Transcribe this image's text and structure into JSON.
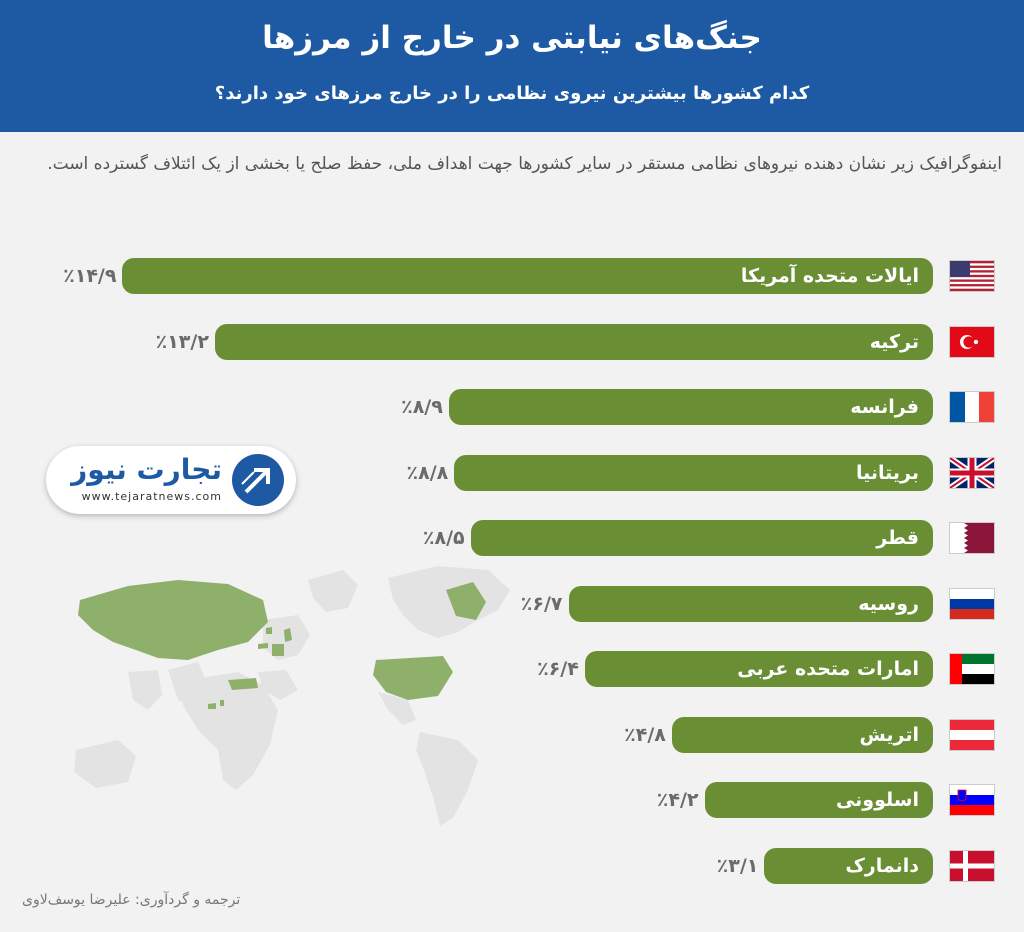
{
  "header": {
    "title": "جنگ‌های نیابتی در خارج از مرزها",
    "subtitle": "کدام کشورها بیشترین نیروی نظامی را در خارج مرزهای خود دارند؟"
  },
  "intro": "اینفوگرافیک زیر نشان دهنده نیروهای نظامی مستقر در سایر کشورها جهت اهداف ملی، حفظ صلح یا بخشی از یک ائتلاف گسترده است.",
  "logo": {
    "name": "تجارت نیوز",
    "url": "www.tejaratnews.com"
  },
  "credit": "ترجمه و گردآوری: علیرضا یوسف‌لاوی",
  "colors": {
    "header": "#1e5aa3",
    "bar": "#6a8e34",
    "map_highlight": "#8fb06a",
    "map_base": "#e3e3e3"
  },
  "chart_data": {
    "type": "bar",
    "orientation": "horizontal",
    "categories": [
      "ایالات متحده آمریکا",
      "ترکیه",
      "فرانسه",
      "بریتانیا",
      "قطر",
      "روسیه",
      "امارات متحده عربی",
      "اتریش",
      "اسلوونی",
      "دانمارک"
    ],
    "values": [
      14.9,
      13.2,
      8.9,
      8.8,
      8.5,
      6.7,
      6.4,
      4.8,
      4.2,
      3.1
    ],
    "value_labels": [
      "٪۱۴/۹",
      "٪۱۳/۲",
      "٪۸/۹",
      "٪۸/۸",
      "٪۸/۵",
      "٪۶/۷",
      "٪۶/۴",
      "٪۴/۸",
      "٪۴/۲",
      "٪۳/۱"
    ],
    "flags": [
      "us-flag",
      "turkey-flag",
      "france-flag",
      "uk-flag",
      "qatar-flag",
      "russia-flag",
      "uae-flag",
      "austria-flag",
      "slovenia-flag",
      "denmark-flag"
    ],
    "unit": "%"
  }
}
